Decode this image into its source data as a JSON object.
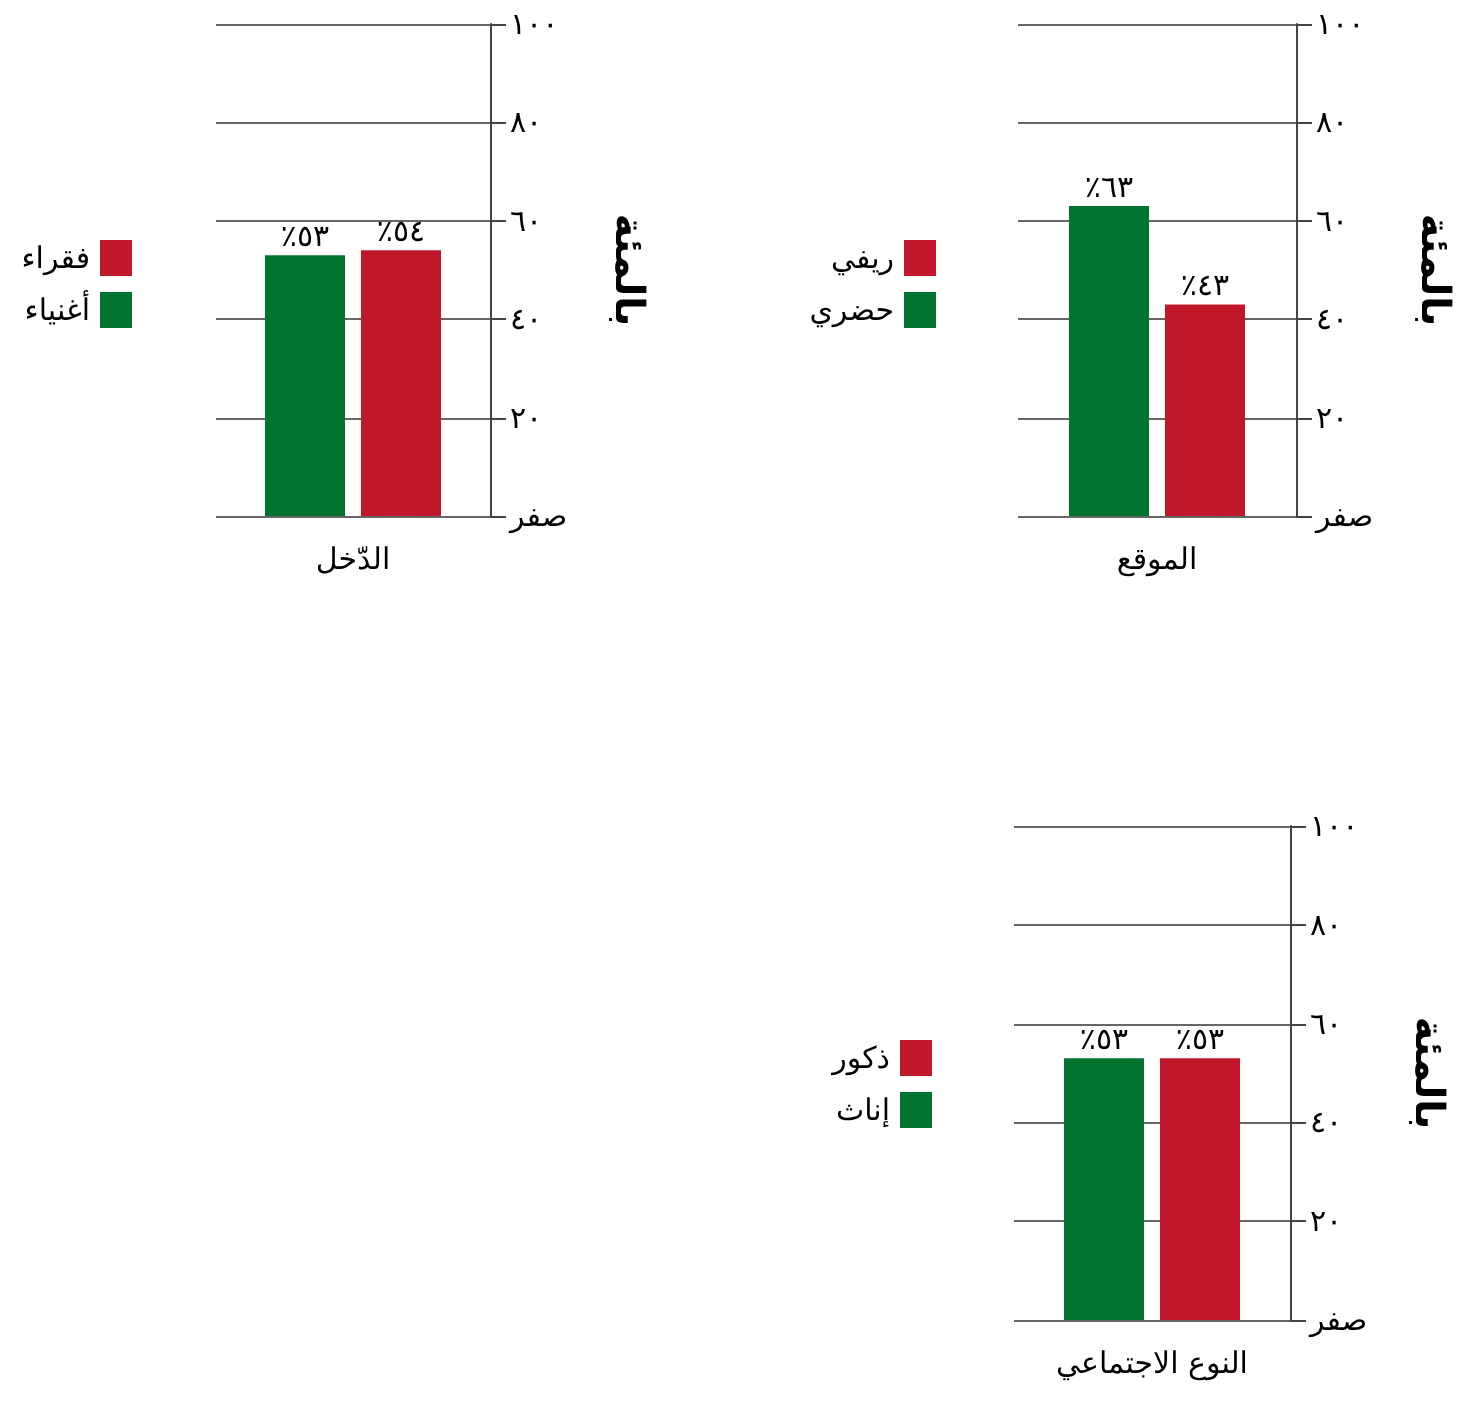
{
  "chart_data": [
    {
      "type": "bar",
      "categories": [
        "الدّخل"
      ],
      "ylabel": "بالمئة",
      "ylim": [
        0,
        100
      ],
      "yticks": [
        {
          "value": 0,
          "label": "صفر"
        },
        {
          "value": 20,
          "label": "٢٠"
        },
        {
          "value": 40,
          "label": "٤٠"
        },
        {
          "value": 60,
          "label": "٦٠"
        },
        {
          "value": 80,
          "label": "٨٠"
        },
        {
          "value": 100,
          "label": "١٠٠"
        }
      ],
      "grid": "y",
      "legend": "left",
      "series": [
        {
          "name": "أغنياء",
          "color": "#00732f",
          "values": [
            53
          ],
          "value_labels": [
            "٪٥٣"
          ]
        },
        {
          "name": "فقراء",
          "color": "#c0182a",
          "values": [
            54
          ],
          "value_labels": [
            "٪٥٤"
          ]
        }
      ]
    },
    {
      "type": "bar",
      "categories": [
        "الموقع"
      ],
      "ylabel": "بالمئة",
      "ylim": [
        0,
        100
      ],
      "yticks": [
        {
          "value": 0,
          "label": "صفر"
        },
        {
          "value": 20,
          "label": "٢٠"
        },
        {
          "value": 40,
          "label": "٤٠"
        },
        {
          "value": 60,
          "label": "٦٠"
        },
        {
          "value": 80,
          "label": "٨٠"
        },
        {
          "value": 100,
          "label": "١٠٠"
        }
      ],
      "grid": "y",
      "legend": "left",
      "series": [
        {
          "name": "حضري",
          "color": "#00732f",
          "values": [
            63
          ],
          "value_labels": [
            "٪٦٣"
          ]
        },
        {
          "name": "ريفي",
          "color": "#c0182a",
          "values": [
            43
          ],
          "value_labels": [
            "٪٤٣"
          ]
        }
      ]
    },
    {
      "type": "bar",
      "categories": [
        "النوع الاجتماعي"
      ],
      "ylabel": "بالمئة",
      "ylim": [
        0,
        100
      ],
      "yticks": [
        {
          "value": 0,
          "label": "صفر"
        },
        {
          "value": 20,
          "label": "٢٠"
        },
        {
          "value": 40,
          "label": "٤٠"
        },
        {
          "value": 60,
          "label": "٦٠"
        },
        {
          "value": 80,
          "label": "٨٠"
        },
        {
          "value": 100,
          "label": "١٠٠"
        }
      ],
      "grid": "y",
      "legend": "left",
      "series": [
        {
          "name": "إناث",
          "color": "#00732f",
          "values": [
            53
          ],
          "value_labels": [
            "٪٥٣"
          ]
        },
        {
          "name": "ذكور",
          "color": "#c0182a",
          "values": [
            53
          ],
          "value_labels": [
            "٪٥٣"
          ]
        }
      ]
    }
  ]
}
